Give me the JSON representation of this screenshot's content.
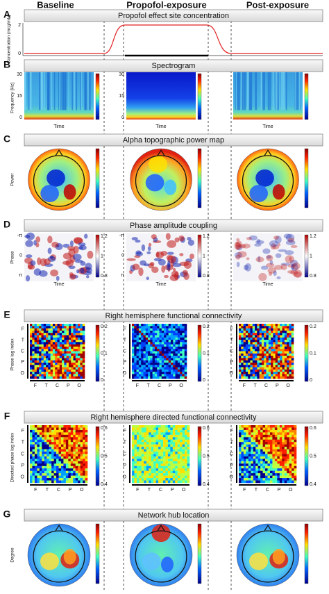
{
  "columns": [
    "Baseline",
    "Propofol-exposure",
    "Post-exposure"
  ],
  "panels": [
    {
      "label": "A",
      "title": "Propofol effect site concentration",
      "y_label": "Concentration (mcg/mL)",
      "y_ticks": [
        "2",
        "0"
      ]
    },
    {
      "label": "B",
      "title": "Spectrogram",
      "y_label": "Frequency [Hz]",
      "y_ticks": [
        "30",
        "15",
        "0"
      ],
      "x_label": "Time"
    },
    {
      "label": "C",
      "title": "Alpha topographic power map",
      "y_label": "Power"
    },
    {
      "label": "D",
      "title": "Phase amplitude coupling",
      "y_label": "Phase",
      "y_ticks": [
        "-π",
        "0",
        "π"
      ],
      "x_label": "Time",
      "colorbar_ticks": [
        "1.2",
        "1",
        "0.8"
      ]
    },
    {
      "label": "E",
      "title": "Right hemisphere functional connectivity",
      "y_label": "Phase lag index",
      "y_ticks": [
        "F",
        "T",
        "C",
        "P",
        "O"
      ],
      "x_ticks": [
        "F",
        "T",
        "C",
        "P",
        "O"
      ],
      "colorbar_ticks": [
        "0.2",
        "0.1",
        "0"
      ]
    },
    {
      "label": "F",
      "title": "Right hemisphere directed functional connectivity",
      "y_label": "Directed phase lag index",
      "y_ticks": [
        "F",
        "T",
        "C",
        "P",
        "O"
      ],
      "x_ticks": [
        "F",
        "T",
        "C",
        "P",
        "O"
      ],
      "colorbar_ticks": [
        "0.6",
        "0.5",
        "0.4"
      ]
    },
    {
      "label": "G",
      "title": "Network hub location",
      "y_label": "Degree"
    }
  ]
}
